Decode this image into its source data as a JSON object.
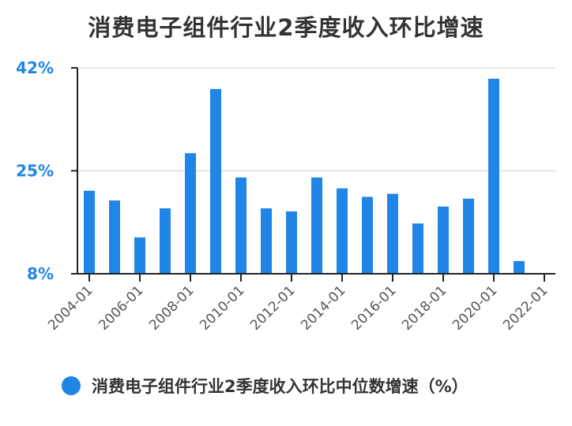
{
  "chart_data": {
    "type": "bar",
    "title": "消费电子组件行业2季度收入环比增速",
    "xlabel": "",
    "ylabel": "",
    "ylim": [
      8,
      42
    ],
    "yticks": [
      "8%",
      "25%",
      "42%"
    ],
    "ytick_values": [
      8,
      25,
      42
    ],
    "x_tick_labels": [
      "2004-01",
      "2006-01",
      "2008-01",
      "2010-01",
      "2012-01",
      "2014-01",
      "2016-01",
      "2018-01",
      "2020-01",
      "2022-01"
    ],
    "categories": [
      "2004",
      "2005",
      "2006",
      "2007",
      "2008",
      "2009",
      "2010",
      "2011",
      "2012",
      "2013",
      "2014",
      "2015",
      "2016",
      "2017",
      "2018",
      "2019",
      "2020",
      "2021"
    ],
    "series": [
      {
        "name": "消费电子组件行业2季度收入环比中位数增速（%）",
        "color": "#1f85e6",
        "values": [
          21.7,
          20.1,
          14.0,
          18.8,
          27.9,
          38.5,
          23.9,
          18.8,
          18.3,
          23.9,
          22.1,
          20.7,
          21.2,
          16.3,
          19.1,
          20.4,
          40.2,
          10.1
        ]
      }
    ],
    "grid": true,
    "legend_position": "bottom-left"
  }
}
